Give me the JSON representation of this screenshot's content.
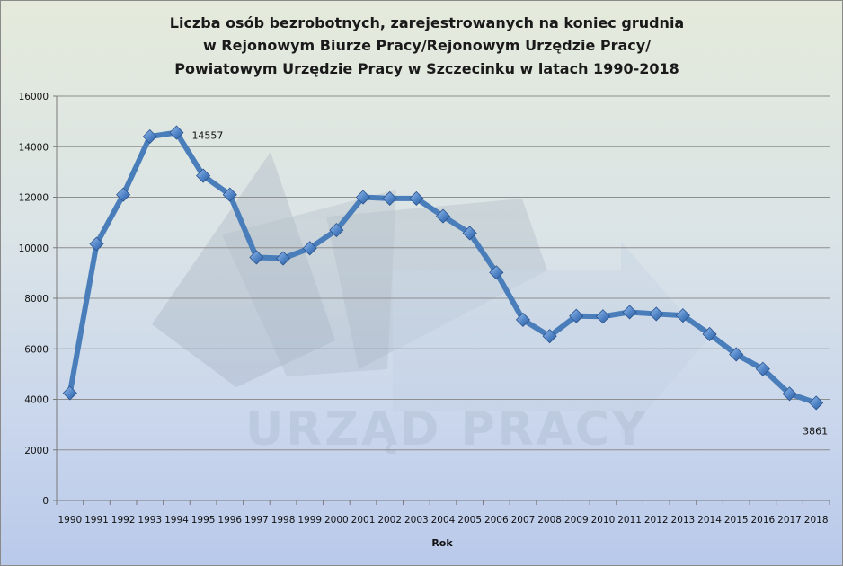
{
  "chart_data": {
    "type": "line",
    "title_lines": [
      "Liczba osób bezrobotnych, zarejestrowanych na koniec grudnia",
      "w Rejonowym Biurze Pracy/Rejonowym Urzędzie Pracy/",
      "Powiatowym Urzędzie Pracy w Szczecinku w latach 1990-2018"
    ],
    "xlabel": "Rok",
    "ylabel": "",
    "ylim": [
      0,
      16000
    ],
    "yticks": [
      "0",
      "2000",
      "4000",
      "6000",
      "8000",
      "10000",
      "12000",
      "14000",
      "16000"
    ],
    "categories": [
      "1990",
      "1991",
      "1992",
      "1993",
      "1994",
      "1995",
      "1996",
      "1997",
      "1998",
      "1999",
      "2000",
      "2001",
      "2002",
      "2003",
      "2004",
      "2005",
      "2006",
      "2007",
      "2008",
      "2009",
      "2010",
      "2011",
      "2012",
      "2013",
      "2014",
      "2015",
      "2016",
      "2017",
      "2018"
    ],
    "values": [
      4250,
      10150,
      12100,
      14400,
      14557,
      12850,
      12100,
      9620,
      9580,
      9980,
      10700,
      12000,
      11950,
      11950,
      11250,
      10580,
      9020,
      7150,
      6500,
      7300,
      7280,
      7450,
      7380,
      7320,
      6580,
      5780,
      5200,
      4220,
      3861
    ],
    "data_labels": [
      {
        "index": 4,
        "text": "14557"
      },
      {
        "index": 28,
        "text": "3861"
      }
    ],
    "grid": true,
    "legend": "none",
    "line_color": "#4a7ebb",
    "marker_color": "#3f6fb0"
  },
  "watermark": {
    "text": "URZĄD PRACY"
  }
}
